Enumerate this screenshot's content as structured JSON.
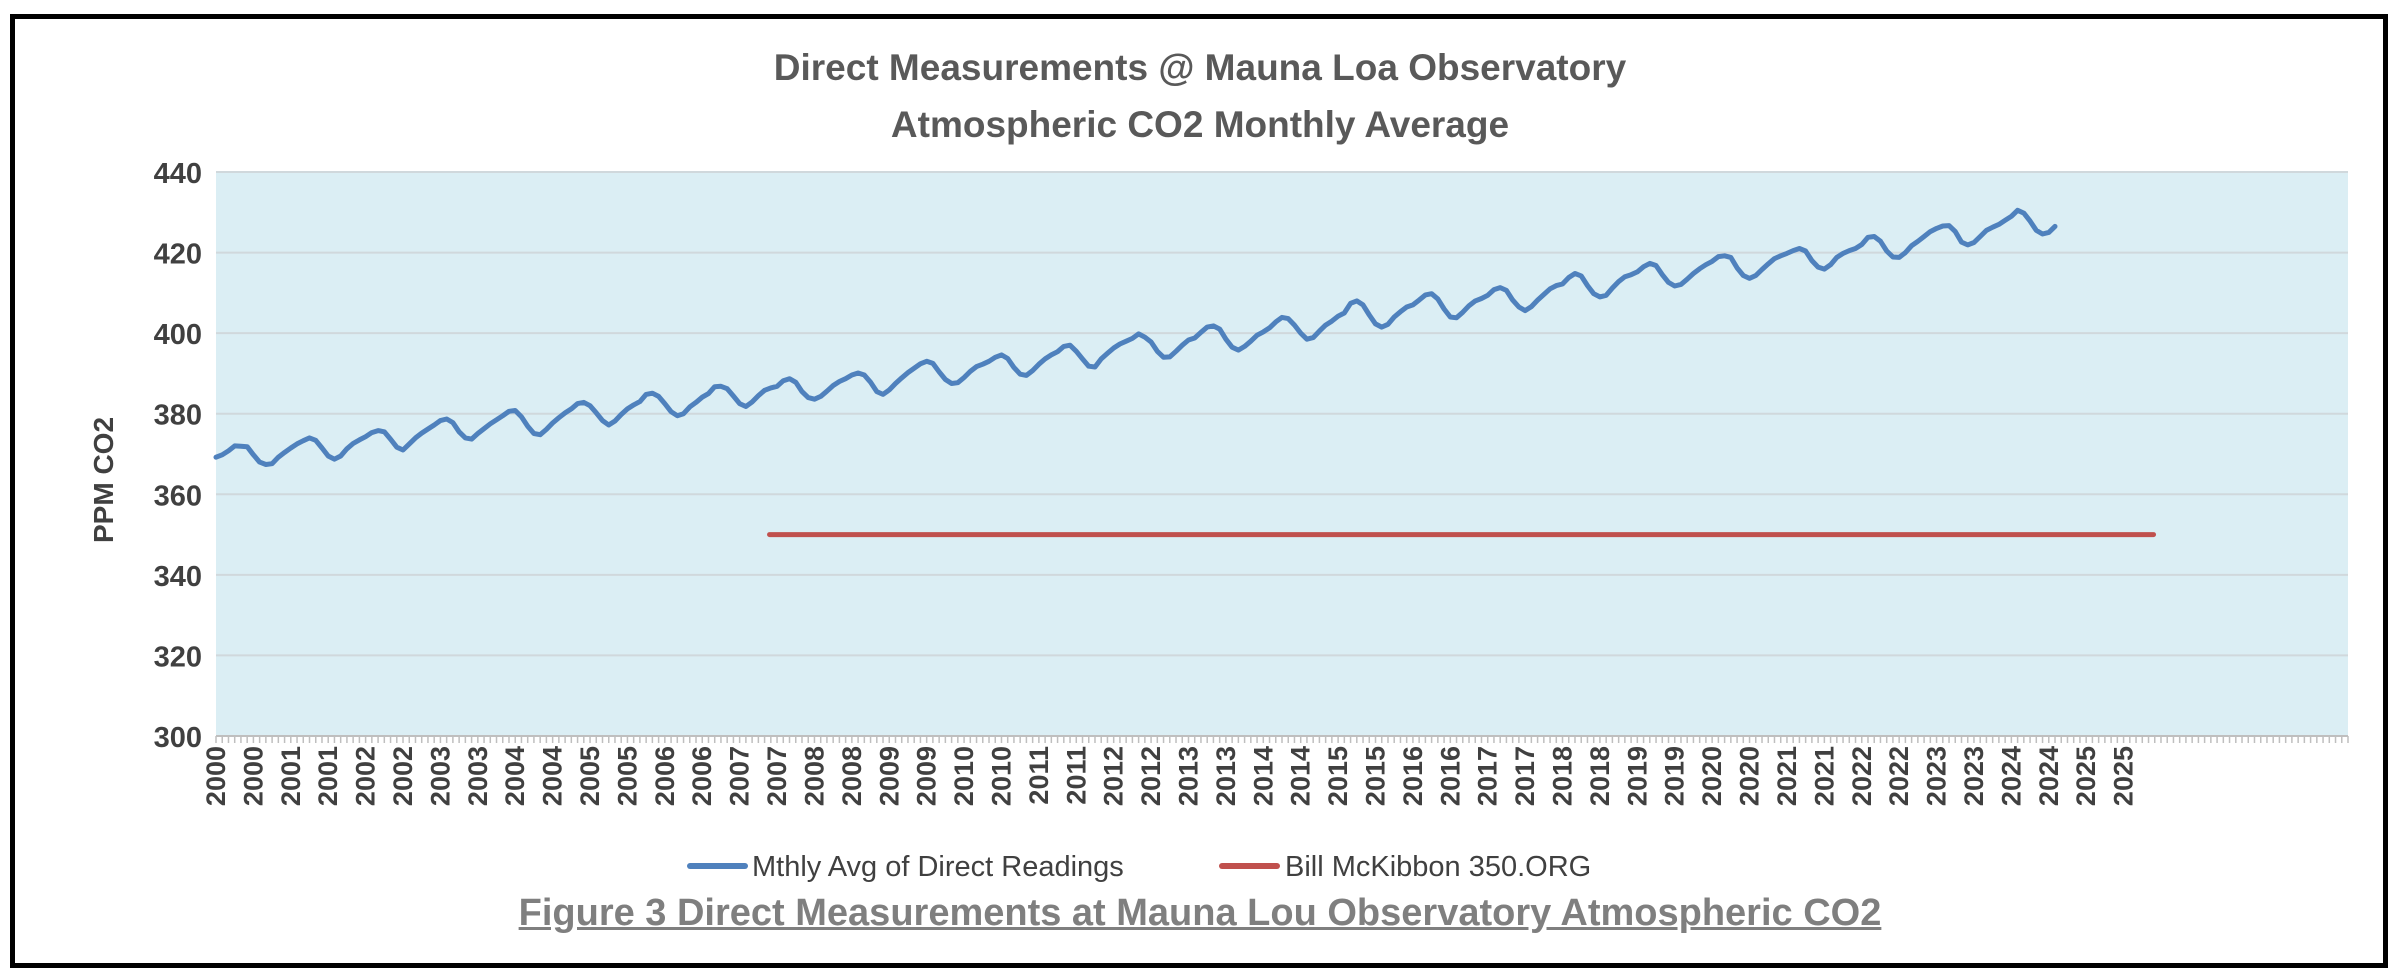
{
  "chart_data": {
    "type": "line",
    "title": "Direct Measurements @ Mauna Loa Observatory",
    "subtitle": "Atmospheric CO2 Monthly Average",
    "ylabel": "PPM CO2",
    "xlabel": "",
    "ylim": [
      300,
      440
    ],
    "yticks": [
      300,
      320,
      340,
      360,
      380,
      400,
      420,
      440
    ],
    "xlim": [
      2000.0,
      2028.5
    ],
    "x_tick_labels": [
      "2000",
      "2000",
      "2001",
      "2001",
      "2002",
      "2002",
      "2003",
      "2003",
      "2004",
      "2004",
      "2005",
      "2005",
      "2006",
      "2006",
      "2007",
      "2007",
      "2008",
      "2008",
      "2009",
      "2009",
      "2010",
      "2010",
      "2011",
      "2011",
      "2012",
      "2012",
      "2013",
      "2013",
      "2014",
      "2014",
      "2015",
      "2015",
      "2016",
      "2016",
      "2017",
      "2017",
      "2018",
      "2018",
      "2019",
      "2019",
      "2020",
      "2020",
      "2021",
      "2021",
      "2022",
      "2022",
      "2023",
      "2023",
      "2024",
      "2024",
      "2025",
      "2025"
    ],
    "grid": true,
    "legend_position": "bottom",
    "background_color": "#dbeef4",
    "series": [
      {
        "name": "Mthly Avg of Direct Readings",
        "color": "#4f81bd",
        "x_start": 2000.0,
        "x_step_months": 1,
        "values": [
          369.2,
          369.8,
          370.8,
          372.0,
          371.9,
          371.8,
          369.8,
          368.0,
          367.4,
          367.6,
          369.2,
          370.4,
          371.5,
          372.5,
          373.3,
          374.0,
          373.4,
          371.5,
          369.5,
          368.7,
          369.5,
          371.3,
          372.6,
          373.5,
          374.3,
          375.3,
          375.8,
          375.5,
          373.7,
          371.7,
          371.0,
          372.5,
          374.0,
          375.2,
          376.2,
          377.2,
          378.3,
          378.7,
          377.8,
          375.5,
          374.0,
          373.7,
          375.1,
          376.3,
          377.5,
          378.5,
          379.5,
          380.6,
          380.8,
          379.2,
          376.9,
          375.1,
          374.8,
          376.1,
          377.7,
          379.0,
          380.2,
          381.2,
          382.5,
          382.8,
          382.0,
          380.2,
          378.3,
          377.2,
          378.2,
          379.8,
          381.2,
          382.2,
          383.0,
          384.8,
          385.1,
          384.3,
          382.5,
          380.5,
          379.5,
          380.0,
          381.7,
          382.8,
          384.1,
          385.0,
          386.7,
          386.8,
          386.2,
          384.4,
          382.5,
          381.8,
          382.9,
          384.5,
          385.8,
          386.4,
          386.8,
          388.2,
          388.7,
          387.8,
          385.5,
          384.0,
          383.6,
          384.3,
          385.6,
          387.0,
          388.0,
          388.7,
          389.6,
          390.1,
          389.6,
          387.8,
          385.5,
          384.8,
          385.9,
          387.5,
          388.9,
          390.2,
          391.3,
          392.4,
          393.0,
          392.5,
          390.4,
          388.5,
          387.5,
          387.7,
          389.0,
          390.5,
          391.7,
          392.3,
          393.0,
          394.0,
          394.6,
          393.7,
          391.5,
          389.8,
          389.5,
          390.7,
          392.3,
          393.6,
          394.6,
          395.4,
          396.7,
          397.0,
          395.5,
          393.6,
          391.8,
          391.6,
          393.6,
          395.0,
          396.3,
          397.3,
          398.0,
          398.7,
          399.8,
          399.0,
          397.8,
          395.5,
          394.0,
          394.1,
          395.5,
          397.0,
          398.3,
          398.8,
          400.2,
          401.5,
          401.8,
          401.0,
          398.5,
          396.5,
          395.8,
          396.7,
          398.0,
          399.5,
          400.3,
          401.3,
          402.8,
          403.9,
          403.6,
          402.0,
          400.0,
          398.5,
          398.9,
          400.5,
          402.0,
          403.0,
          404.2,
          405.0,
          407.4,
          408.0,
          407.0,
          404.5,
          402.3,
          401.5,
          402.2,
          404.0,
          405.3,
          406.5,
          407.0,
          408.2,
          409.5,
          409.8,
          408.5,
          406.0,
          404.0,
          403.8,
          405.2,
          406.8,
          408.0,
          408.6,
          409.4,
          410.8,
          411.3,
          410.6,
          408.2,
          406.5,
          405.6,
          406.6,
          408.2,
          409.6,
          411.0,
          411.8,
          412.2,
          413.8,
          414.8,
          414.2,
          411.8,
          409.8,
          409.0,
          409.4,
          411.2,
          412.8,
          414.0,
          414.5,
          415.2,
          416.5,
          417.3,
          416.8,
          414.5,
          412.6,
          411.7,
          412.1,
          413.4,
          414.8,
          416.0,
          417.0,
          417.8,
          419.0,
          419.2,
          418.8,
          416.2,
          414.3,
          413.6,
          414.3,
          415.8,
          417.2,
          418.5,
          419.2,
          419.8,
          420.5,
          421.0,
          420.4,
          418.0,
          416.4,
          415.9,
          417.0,
          418.8,
          419.8,
          420.5,
          421.0,
          422.0,
          423.8,
          424.0,
          422.8,
          420.4,
          418.9,
          418.8,
          420.0,
          421.7,
          422.8,
          424.0,
          425.2,
          426.0,
          426.6,
          426.7,
          425.2,
          422.6,
          421.9,
          422.5,
          424.0,
          425.5,
          426.3,
          427.0,
          428.0,
          429.0,
          430.5,
          429.8,
          427.8,
          425.5,
          424.6,
          425.0,
          426.5
        ]
      },
      {
        "name": "Bill McKibbon 350.ORG",
        "color": "#c0504d",
        "x": [
          2007.4,
          2025.9
        ],
        "values": [
          350,
          350
        ]
      }
    ]
  },
  "caption": "Figure 3 Direct Measurements at Mauna Lou Observatory Atmospheric CO2"
}
